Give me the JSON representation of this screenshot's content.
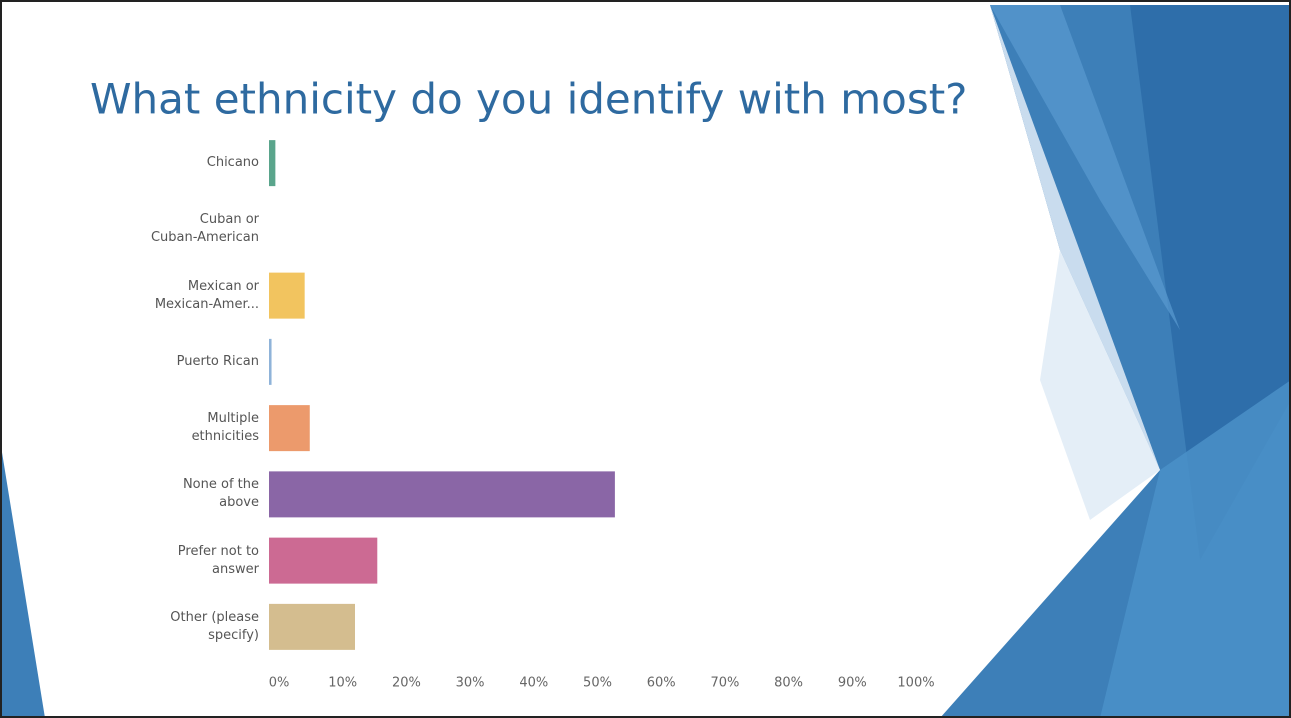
{
  "chart_data": {
    "type": "hbar",
    "title": "What ethnicity do you identify with most?",
    "categories": [
      "Chicano",
      "Cuban or\nCuban-American",
      "Mexican or\nMexican-Amer...",
      "Puerto Rican",
      "Multiple\nethnicities",
      "None of the\nabove",
      "Prefer not to\nanswer",
      "Other (please\nspecify)"
    ],
    "values": [
      1,
      0,
      5.6,
      0.4,
      6.4,
      54.3,
      17,
      13.5
    ],
    "colors": [
      "#5aa58c",
      "#8fb3d9",
      "#f2c45f",
      "#8fb3d9",
      "#ec9a6c",
      "#8a66a6",
      "#cc6a93",
      "#d4bd8f"
    ],
    "xlim": [
      0,
      100
    ],
    "xticks": [
      {
        "value": 0,
        "label": "0%"
      },
      {
        "value": 10,
        "label": "10%"
      },
      {
        "value": 20,
        "label": "20%"
      },
      {
        "value": 30,
        "label": "30%"
      },
      {
        "value": 40,
        "label": "40%"
      },
      {
        "value": 50,
        "label": "50%"
      },
      {
        "value": 60,
        "label": "60%"
      },
      {
        "value": 70,
        "label": "70%"
      },
      {
        "value": 80,
        "label": "80%"
      },
      {
        "value": 90,
        "label": "90%"
      },
      {
        "value": 100,
        "label": "100%"
      }
    ],
    "grid": false
  }
}
